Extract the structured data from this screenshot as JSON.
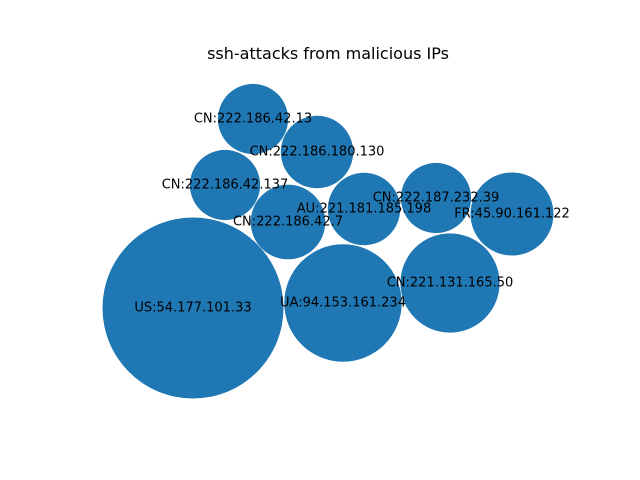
{
  "chart_data": {
    "type": "bubble",
    "title": "ssh-attacks from malicious IPs",
    "color": "#1f77b4",
    "bubbles": [
      {
        "label": "US:54.177.101.33",
        "size": 100
      },
      {
        "label": "UA:94.153.161.234",
        "size": 42
      },
      {
        "label": "CN:221.131.165.50",
        "size": 30
      },
      {
        "label": "FR:45.90.161.122",
        "size": 21
      },
      {
        "label": "CN:222.186.180.130",
        "size": 16
      },
      {
        "label": "CN:222.186.42.7",
        "size": 17
      },
      {
        "label": "AU:221.181.185.198",
        "size": 16
      },
      {
        "label": "CN:222.187.232.39",
        "size": 15
      },
      {
        "label": "CN:222.186.42.137",
        "size": 15
      },
      {
        "label": "CN:222.186.42.13",
        "size": 15
      }
    ]
  }
}
